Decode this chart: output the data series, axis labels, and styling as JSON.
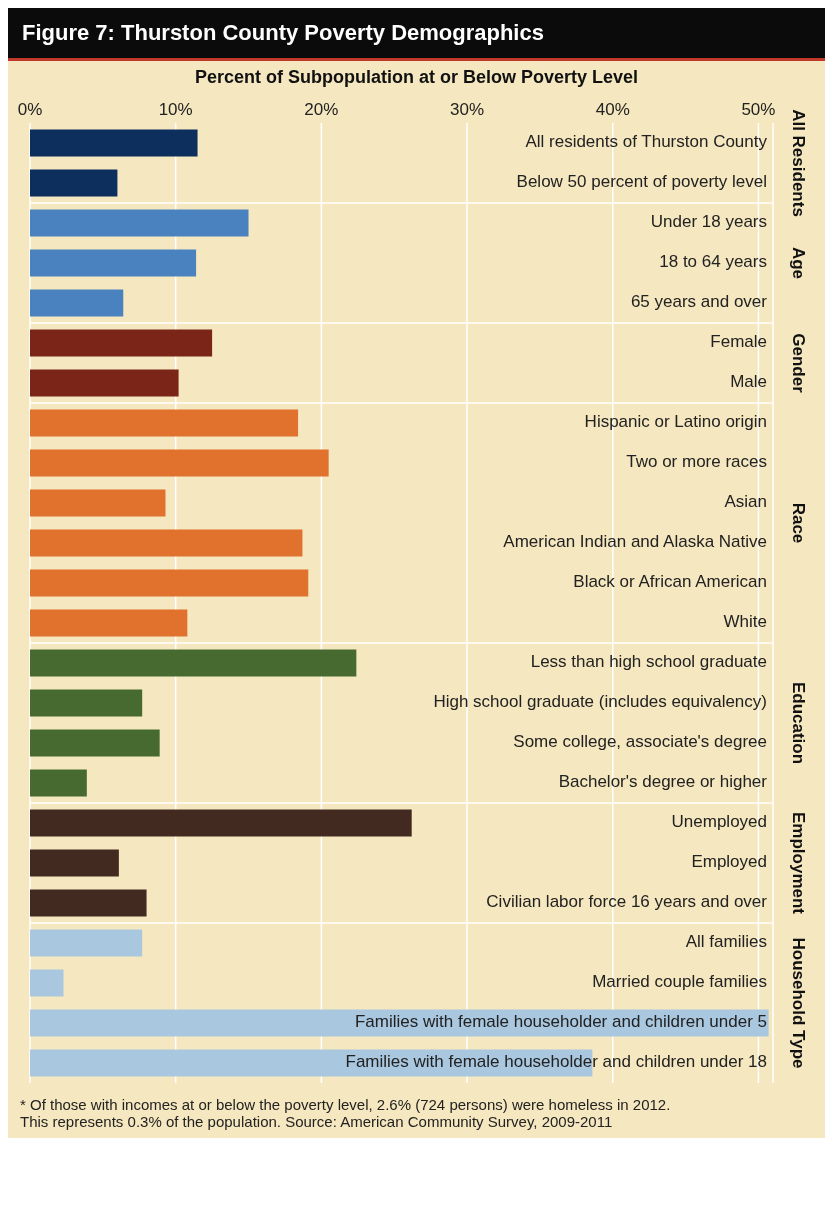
{
  "chart_data": {
    "type": "bar",
    "orientation": "horizontal",
    "title": "Figure 7: Thurston County Poverty Demographics",
    "xlabel": "Percent of Subpopulation at or Below Poverty Level",
    "categories": [
      "All residents of Thurston County",
      "Below 50 percent of poverty level",
      "Under 18 years",
      "18 to 64 years",
      "65 years and over",
      "Female",
      "Male",
      "Hispanic or Latino origin",
      "Two or more races",
      "Asian",
      "American Indian and Alaska Native",
      "Black or African American",
      "White",
      "Less than high school graduate",
      "High school graduate (includes equivalency)",
      "Some college, associate's degree",
      "Bachelor's degree or higher",
      "Unemployed",
      "Employed",
      "Civilian labor force 16 years and over",
      "All families",
      "Married couple families",
      "Families with female householder and children under 5",
      "Families with female householder and children under 18"
    ],
    "values": [
      11.5,
      6.0,
      15.0,
      11.4,
      6.4,
      12.5,
      10.2,
      18.4,
      20.5,
      9.3,
      18.7,
      19.1,
      10.8,
      22.4,
      7.7,
      8.9,
      3.9,
      26.2,
      6.1,
      8.0,
      7.7,
      2.3,
      50.7,
      38.6
    ],
    "colors": [
      "#0d2f5e",
      "#0d2f5e",
      "#4a82bf",
      "#4a82bf",
      "#4a82bf",
      "#7b2418",
      "#7b2418",
      "#e0722e",
      "#e0722e",
      "#e0722e",
      "#e0722e",
      "#e0722e",
      "#e0722e",
      "#476a30",
      "#476a30",
      "#476a30",
      "#476a30",
      "#432a20",
      "#432a20",
      "#432a20",
      "#a9c7df",
      "#a9c7df",
      "#a9c7df",
      "#a9c7df"
    ],
    "xlim": [
      0,
      51
    ],
    "xticks": [
      {
        "value": 0,
        "label": "0%"
      },
      {
        "value": 10,
        "label": "10%"
      },
      {
        "value": 20,
        "label": "20%"
      },
      {
        "value": 30,
        "label": "30%"
      },
      {
        "value": 40,
        "label": "40%"
      },
      {
        "value": 50,
        "label": "50%"
      }
    ],
    "grid": "x",
    "legend": false,
    "annotations": [
      "All Residents",
      "Age",
      "Gender",
      "Race",
      "Education",
      "Employment",
      "Household Type",
      "* Of those with incomes at or below the poverty level, 2.6% (724 persons) were homeless in 2012.",
      "This represents 0.3% of the population. Source: American Community Survey, 2009-2011"
    ]
  }
}
